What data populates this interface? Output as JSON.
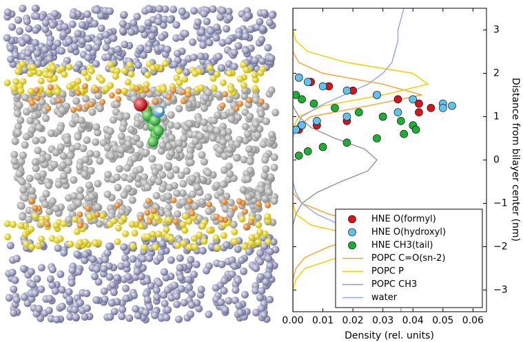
{
  "chart_data": {
    "type": "profile",
    "xlabel": "Density (rel. units)",
    "ylabel": "Distance from bilayer center (nm)",
    "xlim": [
      0,
      0.0645
    ],
    "ylim": [
      -3.5,
      3.5
    ],
    "xticks": [
      {
        "value": 0,
        "label": "0.00"
      },
      {
        "value": 0.01,
        "label": "0.01"
      },
      {
        "value": 0.02,
        "label": "0.02"
      },
      {
        "value": 0.03,
        "label": "0.03"
      },
      {
        "value": 0.04,
        "label": "0.04"
      },
      {
        "value": 0.05,
        "label": "0.05"
      },
      {
        "value": 0.06,
        "label": "0.06"
      }
    ],
    "yticks": [
      {
        "value": -3,
        "label": "−3"
      },
      {
        "value": -2,
        "label": "−2"
      },
      {
        "value": -1,
        "label": "−1"
      },
      0,
      1,
      2,
      3
    ],
    "legend": "lower right",
    "series": [
      {
        "name": "HNE O(formyl)",
        "style": "markers",
        "color": "#d8141e",
        "y": [
          1.9,
          1.8,
          1.7,
          1.6,
          1.5,
          1.4,
          1.3,
          1.2,
          1.1,
          1.0,
          0.9,
          0.8,
          0.7
        ],
        "x": [
          0.002,
          0.006,
          0.012,
          0.02,
          0.028,
          0.035,
          0.042,
          0.046,
          0.042,
          0.03,
          0.018,
          0.008,
          0.002
        ]
      },
      {
        "name": "HNE O(hydroxyl)",
        "style": "markers",
        "color": "#62c2ee",
        "y": [
          1.9,
          1.8,
          1.7,
          1.6,
          1.5,
          1.4,
          1.3,
          1.25,
          1.2,
          1.1,
          1.0,
          0.9,
          0.8,
          0.7
        ],
        "x": [
          0.002,
          0.005,
          0.01,
          0.018,
          0.028,
          0.04,
          0.05,
          0.053,
          0.05,
          0.035,
          0.018,
          0.008,
          0.003,
          0.001
        ]
      },
      {
        "name": "HNE CH3(tail)",
        "style": "markers",
        "color": "#1fae35",
        "y": [
          1.5,
          1.4,
          1.3,
          1.2,
          1.1,
          1.0,
          0.9,
          0.8,
          0.7,
          0.6,
          0.5,
          0.4,
          0.3,
          0.2,
          0.1
        ],
        "x": [
          0.001,
          0.003,
          0.007,
          0.014,
          0.022,
          0.03,
          0.036,
          0.04,
          0.041,
          0.037,
          0.028,
          0.018,
          0.01,
          0.005,
          0.002
        ]
      },
      {
        "name": "POPC C=O(sn-2)",
        "style": "line",
        "color": "#f5a630",
        "y": [
          -3.5,
          -3.25,
          -3,
          -2.75,
          -2.5,
          -2.25,
          -2,
          -1.75,
          -1.5,
          -1.25,
          -1,
          -0.75,
          -0.5,
          -0.25,
          0,
          0.25,
          0.5,
          0.75,
          1,
          1.25,
          1.5,
          1.75,
          2,
          2.25,
          2.5,
          2.75,
          3,
          3.25,
          3.5
        ],
        "x": [
          0,
          0,
          0,
          0,
          0.001,
          0.004,
          0.012,
          0.024,
          0.027,
          0.012,
          0.003,
          0,
          0,
          0,
          0,
          0,
          0,
          0.001,
          0.006,
          0.025,
          0.043,
          0.03,
          0.01,
          0.002,
          0,
          0,
          0,
          0,
          0
        ]
      },
      {
        "name": "POPC P",
        "style": "line",
        "color": "#f2d000",
        "y": [
          -3.5,
          -3.25,
          -3,
          -2.75,
          -2.5,
          -2.25,
          -2,
          -1.75,
          -1.5,
          -1.25,
          -1,
          -0.75,
          -0.5,
          -0.25,
          0,
          0.25,
          0.5,
          0.75,
          1,
          1.25,
          1.5,
          1.75,
          2,
          2.25,
          2.5,
          2.75,
          3,
          3.25,
          3.5
        ],
        "x": [
          0,
          0,
          0,
          0.001,
          0.004,
          0.015,
          0.03,
          0.022,
          0.006,
          0.001,
          0,
          0,
          0,
          0,
          0,
          0,
          0,
          0,
          0.002,
          0.01,
          0.03,
          0.045,
          0.04,
          0.018,
          0.005,
          0.001,
          0,
          0,
          0
        ]
      },
      {
        "name": "POPC CH3",
        "style": "line",
        "color": "#999999",
        "y": [
          -3.5,
          -3.25,
          -3,
          -2.75,
          -2.5,
          -2.25,
          -2,
          -1.75,
          -1.5,
          -1.25,
          -1,
          -0.75,
          -0.5,
          -0.25,
          0,
          0.25,
          0.5,
          0.75,
          1,
          1.25,
          1.5,
          1.75,
          2,
          2.25,
          2.5,
          2.75,
          3,
          3.25,
          3.5
        ],
        "x": [
          0,
          0,
          0,
          0,
          0,
          0,
          0,
          0,
          0,
          0.001,
          0.003,
          0.008,
          0.016,
          0.025,
          0.028,
          0.024,
          0.014,
          0.006,
          0.002,
          0,
          0,
          0,
          0,
          0,
          0,
          0,
          0,
          0,
          0
        ]
      },
      {
        "name": "water",
        "style": "line",
        "color": "#93a9f0",
        "y": [
          -3.5,
          -3.25,
          -3,
          -2.75,
          -2.5,
          -2.25,
          -2,
          -1.75,
          -1.5,
          -1.25,
          -1,
          -0.75,
          -0.5,
          -0.25,
          0,
          0.25,
          0.5,
          0.75,
          1,
          1.25,
          1.5,
          1.75,
          2,
          2.25,
          2.5,
          2.75,
          3,
          3.25,
          3.5
        ],
        "x": [
          0.036,
          0.036,
          0.035,
          0.035,
          0.034,
          0.032,
          0.029,
          0.024,
          0.016,
          0.008,
          0.003,
          0.001,
          0,
          0,
          0,
          0,
          0,
          0.001,
          0.003,
          0.009,
          0.017,
          0.025,
          0.03,
          0.033,
          0.034,
          0.035,
          0.035,
          0.036,
          0.037
        ]
      }
    ]
  }
}
